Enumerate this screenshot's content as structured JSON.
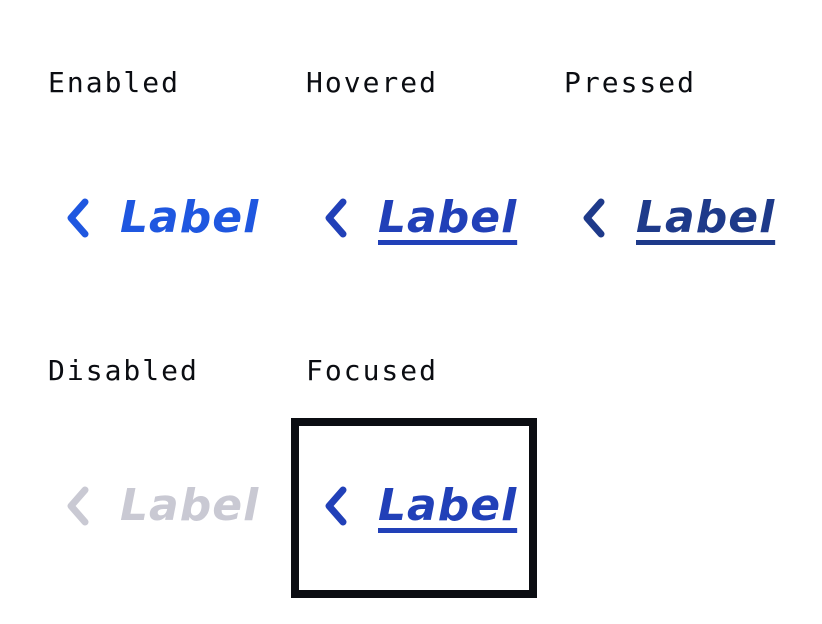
{
  "colors": {
    "enabled": "#1f57e0",
    "hovered": "#2140b8",
    "pressed": "#1e3a8a",
    "disabled": "#c9c9d3",
    "focus_ring": "#0b0d12",
    "caption": "#0b0d12"
  },
  "states": {
    "enabled": {
      "caption": "Enabled",
      "link_label": "Label",
      "icon": "chevron-left-icon"
    },
    "hovered": {
      "caption": "Hovered",
      "link_label": "Label",
      "icon": "chevron-left-icon"
    },
    "pressed": {
      "caption": "Pressed",
      "link_label": "Label",
      "icon": "chevron-left-icon"
    },
    "disabled": {
      "caption": "Disabled",
      "link_label": "Label",
      "icon": "chevron-left-icon"
    },
    "focused": {
      "caption": "Focused",
      "link_label": "Label",
      "icon": "chevron-left-icon"
    }
  }
}
